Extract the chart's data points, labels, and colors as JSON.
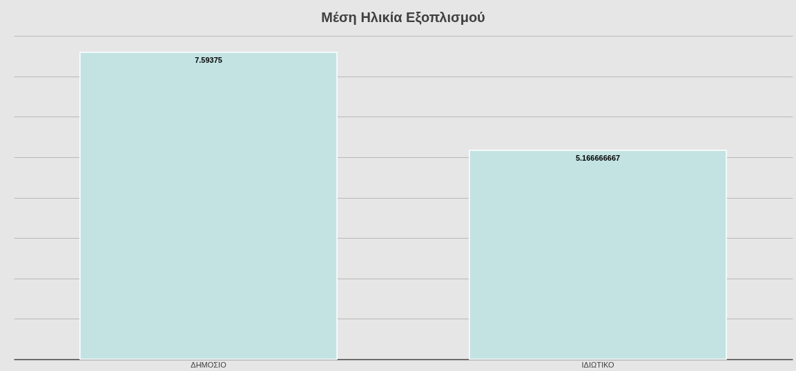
{
  "chart_data": {
    "type": "bar",
    "title": "Μέση Ηλικία Εξοπλισμού",
    "categories": [
      "ΔΗΜΟΣΙΟ",
      "ΙΔΙΩΤΙΚΟ"
    ],
    "values": [
      7.59375,
      5.166666667
    ],
    "color": "#c3e3e3",
    "data_labels": true,
    "ylim": [
      0,
      8
    ],
    "yticks": [
      {
        "value": 0,
        "label": null
      },
      {
        "value": 1,
        "label": null
      },
      {
        "value": 2,
        "label": null
      },
      {
        "value": 3,
        "label": null
      },
      {
        "value": 4,
        "label": null
      },
      {
        "value": 5,
        "label": null
      },
      {
        "value": 6,
        "label": null
      },
      {
        "value": 7,
        "label": null
      },
      {
        "value": 8,
        "label": null
      }
    ],
    "tick_labels": "x",
    "grid": "y"
  }
}
